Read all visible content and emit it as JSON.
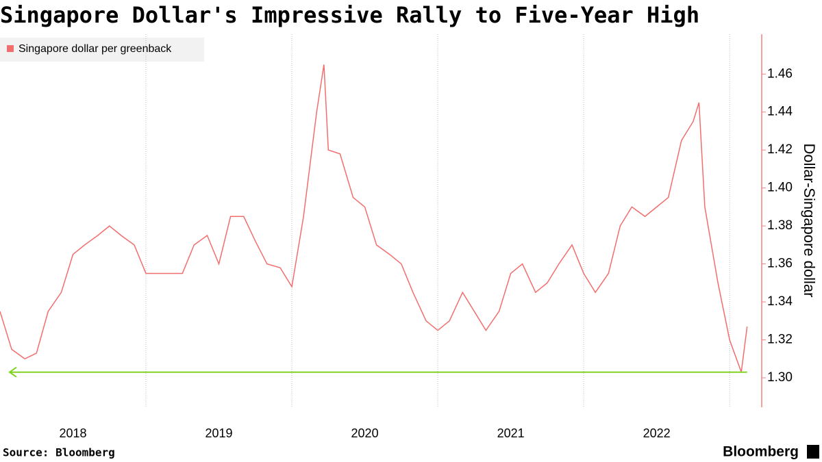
{
  "chart_data": {
    "type": "line",
    "title": "Singapore Dollar's Impressive Rally to Five-Year High",
    "y_axis_label": "Dollar-Singapore dollar",
    "source": "Source: Bloomberg",
    "brand": "Bloomberg",
    "legend_position": "top-left",
    "x": [
      2018,
      2018.08,
      2018.17,
      2018.25,
      2018.33,
      2018.42,
      2018.5,
      2018.58,
      2018.67,
      2018.75,
      2018.83,
      2018.92,
      2019,
      2019.08,
      2019.17,
      2019.25,
      2019.33,
      2019.42,
      2019.5,
      2019.58,
      2019.67,
      2019.75,
      2019.83,
      2019.92,
      2020,
      2020.08,
      2020.17,
      2020.22,
      2020.25,
      2020.33,
      2020.42,
      2020.5,
      2020.58,
      2020.67,
      2020.75,
      2020.83,
      2020.92,
      2021,
      2021.08,
      2021.17,
      2021.25,
      2021.33,
      2021.42,
      2021.5,
      2021.58,
      2021.67,
      2021.75,
      2021.83,
      2021.92,
      2022,
      2022.08,
      2022.17,
      2022.25,
      2022.33,
      2022.42,
      2022.5,
      2022.58,
      2022.67,
      2022.75,
      2022.79,
      2022.83,
      2022.92,
      2023,
      2023.08,
      2023.12
    ],
    "series": [
      {
        "name": "Singapore dollar per greenback",
        "color": "#f26d6d",
        "values": [
          1.335,
          1.315,
          1.31,
          1.313,
          1.335,
          1.345,
          1.365,
          1.37,
          1.375,
          1.38,
          1.375,
          1.37,
          1.355,
          1.355,
          1.355,
          1.355,
          1.37,
          1.375,
          1.36,
          1.385,
          1.385,
          1.372,
          1.36,
          1.358,
          1.348,
          1.385,
          1.44,
          1.465,
          1.42,
          1.418,
          1.395,
          1.39,
          1.37,
          1.365,
          1.36,
          1.345,
          1.33,
          1.325,
          1.33,
          1.345,
          1.335,
          1.325,
          1.335,
          1.355,
          1.36,
          1.345,
          1.35,
          1.36,
          1.37,
          1.355,
          1.345,
          1.355,
          1.38,
          1.39,
          1.385,
          1.39,
          1.395,
          1.425,
          1.435,
          1.445,
          1.39,
          1.35,
          1.32,
          1.303,
          1.327
        ]
      }
    ],
    "reference_line": {
      "value": 1.303,
      "color": "#7ed321"
    },
    "xlim": [
      2018,
      2023.22
    ],
    "xticks": [
      {
        "value": 2018.5,
        "label": "2018"
      },
      {
        "value": 2019.5,
        "label": "2019"
      },
      {
        "value": 2020.5,
        "label": "2020"
      },
      {
        "value": 2021.5,
        "label": "2021"
      },
      {
        "value": 2022.5,
        "label": "2022"
      }
    ],
    "x_gridlines": [
      2019,
      2020,
      2021,
      2022,
      2023
    ],
    "ylim": [
      1.2845,
      1.481
    ],
    "yticks": [
      {
        "value": 1.3,
        "label": "1.30"
      },
      {
        "value": 1.32,
        "label": "1.32"
      },
      {
        "value": 1.34,
        "label": "1.34"
      },
      {
        "value": 1.36,
        "label": "1.36"
      },
      {
        "value": 1.38,
        "label": "1.38"
      },
      {
        "value": 1.4,
        "label": "1.40"
      },
      {
        "value": 1.42,
        "label": "1.42"
      },
      {
        "value": 1.44,
        "label": "1.44"
      },
      {
        "value": 1.46,
        "label": "1.46"
      }
    ],
    "y_axis_side": "right"
  }
}
